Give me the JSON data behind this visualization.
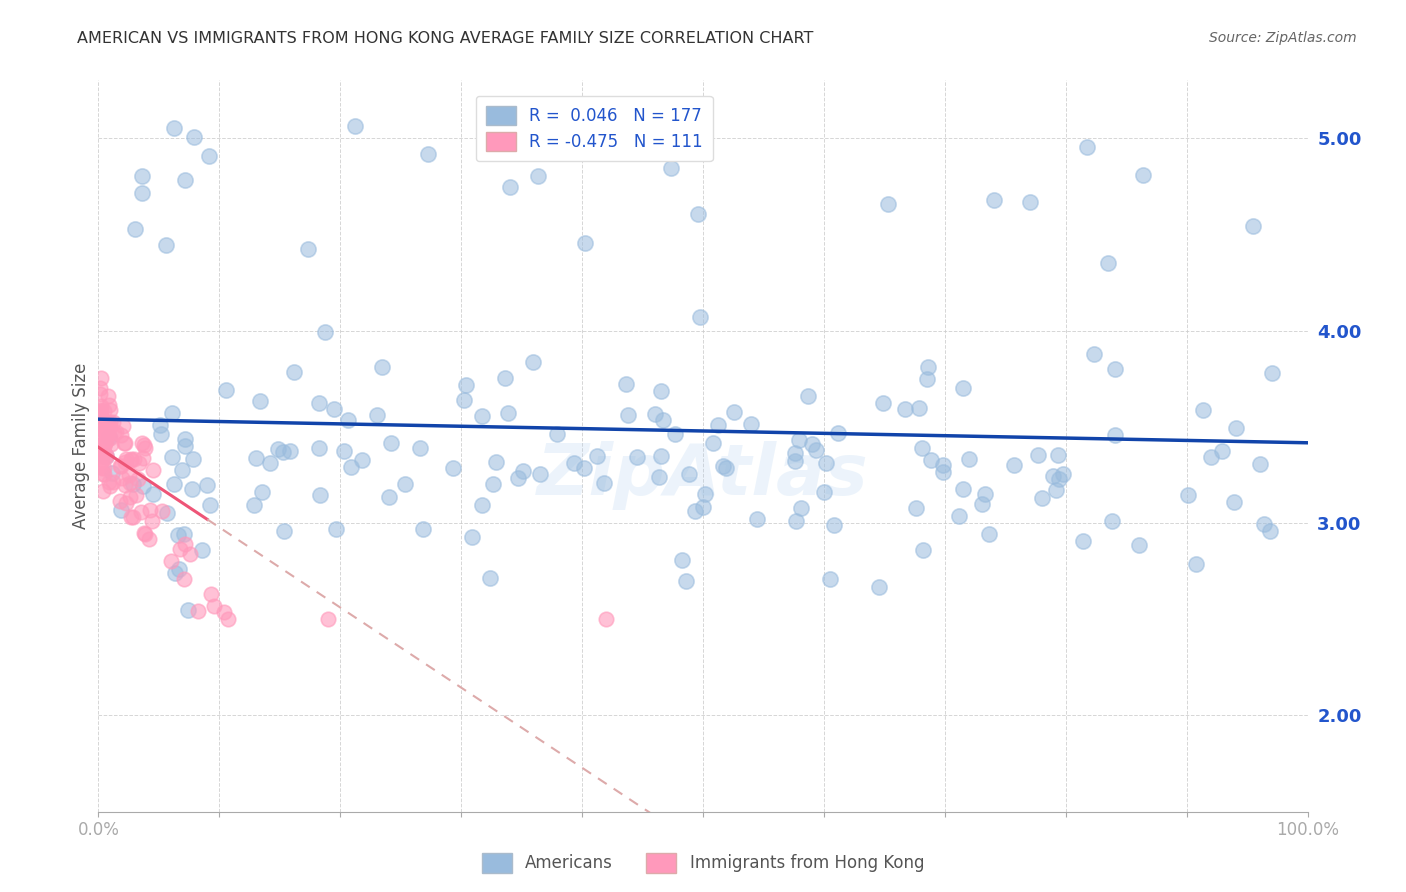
{
  "title": "AMERICAN VS IMMIGRANTS FROM HONG KONG AVERAGE FAMILY SIZE CORRELATION CHART",
  "source": "Source: ZipAtlas.com",
  "ylabel": "Average Family Size",
  "yticks": [
    2.0,
    3.0,
    4.0,
    5.0
  ],
  "xlim": [
    0.0,
    1.0
  ],
  "ylim": [
    1.5,
    5.3
  ],
  "legend_r1": "R =  0.046",
  "legend_n1": "N = 177",
  "legend_r2": "R = -0.475",
  "legend_n2": "N = 111",
  "blue_color": "#99BBDD",
  "pink_color": "#FF99BB",
  "line_blue": "#1144AA",
  "line_pink": "#EE5577",
  "trend_dashed_color": "#DDAAAA",
  "watermark_color": "#AACCEE",
  "background_color": "#FFFFFF",
  "grid_color": "#CCCCCC",
  "tick_color": "#AAAAAA",
  "label_color": "#555555",
  "blue_label_color": "#2255CC"
}
